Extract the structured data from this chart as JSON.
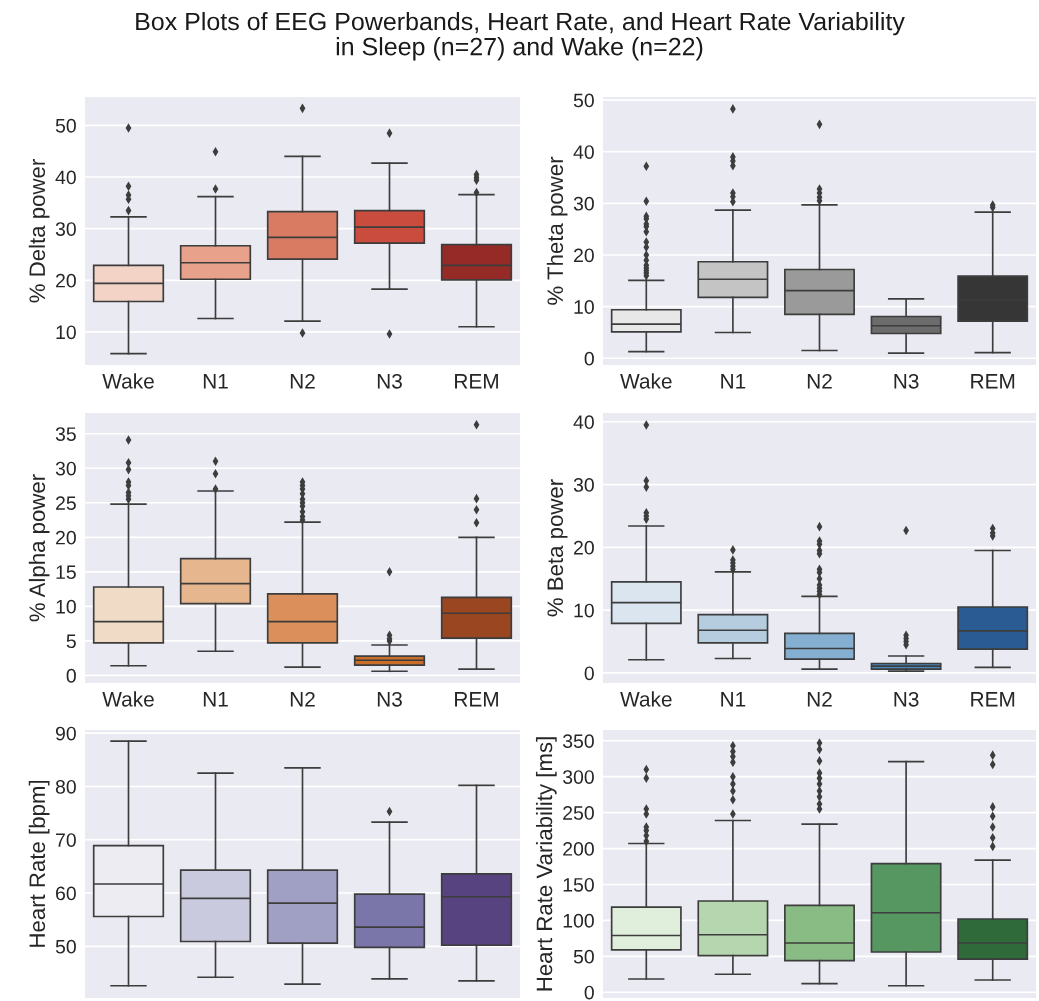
{
  "chart_data": [
    {
      "type": "box",
      "title": "Box Plots of EEG Powerbands, Heart Rate, and Heart Rate Variability\nin Sleep (n=27) and Wake (n=22)",
      "ylabel": "% Delta power",
      "categories": [
        "Wake",
        "N1",
        "N2",
        "N3",
        "REM"
      ],
      "colors": [
        "#f2d3c5",
        "#e8a28b",
        "#d97b62",
        "#c94c3f",
        "#962a26"
      ],
      "ylim": [
        3.6,
        55.5
      ],
      "yticks": [
        10,
        20,
        30,
        40,
        50
      ],
      "grid": "y",
      "marker": "diamond",
      "boxes": [
        {
          "low": 5.8,
          "q1": 15.9,
          "median": 19.4,
          "q3": 22.9,
          "high": 32.3,
          "outliers": [
            49.5,
            38.2,
            36.5,
            35.7,
            33.5
          ]
        },
        {
          "low": 12.6,
          "q1": 20.2,
          "median": 23.4,
          "q3": 26.7,
          "high": 36.2,
          "outliers": [
            44.9,
            37.7
          ]
        },
        {
          "low": 12.1,
          "q1": 24.1,
          "median": 28.3,
          "q3": 33.3,
          "high": 44.0,
          "outliers": [
            53.3,
            9.8
          ]
        },
        {
          "low": 18.3,
          "q1": 27.2,
          "median": 30.3,
          "q3": 33.5,
          "high": 42.7,
          "outliers": [
            48.5,
            9.6
          ]
        },
        {
          "low": 11.0,
          "q1": 20.1,
          "median": 22.9,
          "q3": 26.9,
          "high": 36.6,
          "outliers": [
            40.5,
            39.9,
            39.4,
            37.0
          ]
        }
      ]
    },
    {
      "type": "box",
      "ylabel": "% Theta power",
      "categories": [
        "Wake",
        "N1",
        "N2",
        "N3",
        "REM"
      ],
      "colors": [
        "#e8e8e8",
        "#c4c4c4",
        "#9a9a9a",
        "#6c6c6c",
        "#363636"
      ],
      "ylim": [
        -1.3,
        50.6
      ],
      "yticks": [
        0,
        10,
        20,
        30,
        40,
        50
      ],
      "grid": "y",
      "marker": "diamond",
      "boxes": [
        {
          "low": 1.3,
          "q1": 5.1,
          "median": 6.6,
          "q3": 9.4,
          "high": 15.1,
          "outliers": [
            37.2,
            30.4,
            27.5,
            27.0,
            26.0,
            25.5,
            24.5,
            22.5,
            21.5,
            20.0,
            19.0,
            18.0,
            17.5,
            17.0,
            16.5,
            16.0
          ]
        },
        {
          "low": 5.0,
          "q1": 11.8,
          "median": 15.3,
          "q3": 18.7,
          "high": 28.7,
          "outliers": [
            48.3,
            39.0,
            38.2,
            37.3,
            32.0,
            31.3,
            30.3
          ]
        },
        {
          "low": 1.5,
          "q1": 8.5,
          "median": 13.1,
          "q3": 17.2,
          "high": 29.7,
          "outliers": [
            45.3,
            32.8,
            32.0,
            31.2,
            30.5
          ]
        },
        {
          "low": 1.0,
          "q1": 4.8,
          "median": 6.3,
          "q3": 8.1,
          "high": 11.5
        },
        {
          "low": 1.1,
          "q1": 7.2,
          "median": 11.3,
          "q3": 15.9,
          "high": 28.3,
          "outliers": [
            29.7,
            29.2
          ]
        }
      ]
    },
    {
      "type": "box",
      "ylabel": "% Alpha power",
      "categories": [
        "Wake",
        "N1",
        "N2",
        "N3",
        "REM"
      ],
      "colors": [
        "#f0dcc6",
        "#e6b78f",
        "#db8f5a",
        "#c86d2a",
        "#9a4620"
      ],
      "ylim": [
        -1.1,
        38
      ],
      "yticks": [
        0,
        5,
        10,
        15,
        20,
        25,
        30,
        35
      ],
      "grid": "y",
      "marker": "diamond",
      "boxes": [
        {
          "low": 1.4,
          "q1": 4.7,
          "median": 7.8,
          "q3": 12.8,
          "high": 24.8,
          "outliers": [
            34.1,
            30.8,
            29.8,
            28.0,
            27.5,
            26.5,
            26.0,
            25.5
          ]
        },
        {
          "low": 3.5,
          "q1": 10.4,
          "median": 13.3,
          "q3": 16.9,
          "high": 26.7,
          "outliers": [
            31.0,
            29.2,
            27.0
          ]
        },
        {
          "low": 1.2,
          "q1": 4.7,
          "median": 7.8,
          "q3": 11.8,
          "high": 22.2,
          "outliers": [
            28.0,
            27.5,
            27.0,
            26.3,
            25.5,
            25.0,
            24.5,
            23.7,
            23.0,
            22.5
          ]
        },
        {
          "low": 0.6,
          "q1": 1.5,
          "median": 2.2,
          "q3": 2.8,
          "high": 4.4,
          "outliers": [
            15.0,
            5.8,
            5.3,
            5.0
          ]
        },
        {
          "low": 0.9,
          "q1": 5.4,
          "median": 9.0,
          "q3": 11.3,
          "high": 20.0,
          "outliers": [
            36.3,
            25.6,
            24.0,
            22.1
          ]
        }
      ]
    },
    {
      "type": "box",
      "ylabel": "% Beta power",
      "categories": [
        "Wake",
        "N1",
        "N2",
        "N3",
        "REM"
      ],
      "colors": [
        "#dae5f0",
        "#b6cde0",
        "#84afd0",
        "#4a88bd",
        "#2a5b92"
      ],
      "ylim": [
        -1.6,
        41.4
      ],
      "yticks": [
        0,
        10,
        20,
        30,
        40
      ],
      "grid": "y",
      "marker": "diamond",
      "boxes": [
        {
          "low": 2.1,
          "q1": 7.9,
          "median": 11.2,
          "q3": 14.5,
          "high": 23.4,
          "outliers": [
            39.5,
            30.6,
            29.6,
            25.5,
            25.0,
            24.5
          ]
        },
        {
          "low": 2.3,
          "q1": 4.8,
          "median": 6.8,
          "q3": 9.3,
          "high": 16.1,
          "outliers": [
            19.6,
            18.0,
            17.5,
            17.0,
            16.5
          ]
        },
        {
          "low": 0.6,
          "q1": 2.2,
          "median": 3.9,
          "q3": 6.3,
          "high": 12.2,
          "outliers": [
            23.3,
            21.0,
            20.5,
            19.5,
            19.0,
            16.5,
            16.0,
            15.0,
            14.0,
            13.5,
            13.0,
            12.5
          ]
        },
        {
          "low": 0.3,
          "q1": 0.6,
          "median": 1.1,
          "q3": 1.5,
          "high": 2.7,
          "outliers": [
            22.7,
            6.0,
            5.5,
            5.0,
            4.5
          ]
        },
        {
          "low": 0.9,
          "q1": 3.8,
          "median": 6.7,
          "q3": 10.5,
          "high": 19.5,
          "outliers": [
            23.0,
            22.3,
            21.8
          ]
        }
      ]
    },
    {
      "type": "box",
      "ylabel": "Heart Rate [bpm]",
      "categories": [
        null,
        null,
        null,
        null,
        null
      ],
      "colors": [
        "#ececf2",
        "#c9cade",
        "#a09fc4",
        "#7b76a9",
        "#56437f"
      ],
      "ylim": [
        40.3,
        90.6
      ],
      "yticks": [
        50,
        60,
        70,
        80,
        90
      ],
      "grid": "y",
      "marker": "diamond",
      "boxes": [
        {
          "low": 42.6,
          "q1": 55.6,
          "median": 61.7,
          "q3": 68.9,
          "high": 88.5
        },
        {
          "low": 44.2,
          "q1": 50.9,
          "median": 59.0,
          "q3": 64.3,
          "high": 82.5
        },
        {
          "low": 42.9,
          "q1": 50.6,
          "median": 58.1,
          "q3": 64.3,
          "high": 83.5
        },
        {
          "low": 43.9,
          "q1": 49.8,
          "median": 53.6,
          "q3": 59.8,
          "high": 73.3,
          "outliers": [
            75.3
          ]
        },
        {
          "low": 43.5,
          "q1": 50.2,
          "median": 59.3,
          "q3": 63.6,
          "high": 80.2
        }
      ]
    },
    {
      "type": "box",
      "ylabel": "Heart Rate Variability [ms]",
      "categories": [
        null,
        null,
        null,
        null,
        null
      ],
      "colors": [
        "#e0eedc",
        "#b5d6ae",
        "#89bc84",
        "#569660",
        "#2f6b3a"
      ],
      "ylim": [
        -8,
        365
      ],
      "yticks": [
        0,
        50,
        100,
        150,
        200,
        250,
        300,
        350
      ],
      "grid": "y",
      "marker": "diamond",
      "boxes": [
        {
          "low": 18.5,
          "q1": 59,
          "median": 79,
          "q3": 118.5,
          "high": 207,
          "outliers": [
            310,
            298,
            255,
            248,
            230,
            225,
            218,
            210
          ]
        },
        {
          "low": 25,
          "q1": 51,
          "median": 80,
          "q3": 127,
          "high": 239,
          "outliers": [
            343,
            335,
            328,
            320,
            300,
            290,
            280,
            268,
            248
          ]
        },
        {
          "low": 12,
          "q1": 44,
          "median": 68.5,
          "q3": 121,
          "high": 234,
          "outliers": [
            347,
            338,
            322,
            305,
            298,
            290,
            280,
            272,
            262,
            255
          ]
        },
        {
          "low": 9,
          "q1": 56,
          "median": 110.6,
          "q3": 179,
          "high": 321
        },
        {
          "low": 17,
          "q1": 46,
          "median": 68.5,
          "q3": 102,
          "high": 184,
          "outliers": [
            330,
            317,
            258,
            245,
            230,
            215,
            203
          ]
        }
      ]
    }
  ]
}
